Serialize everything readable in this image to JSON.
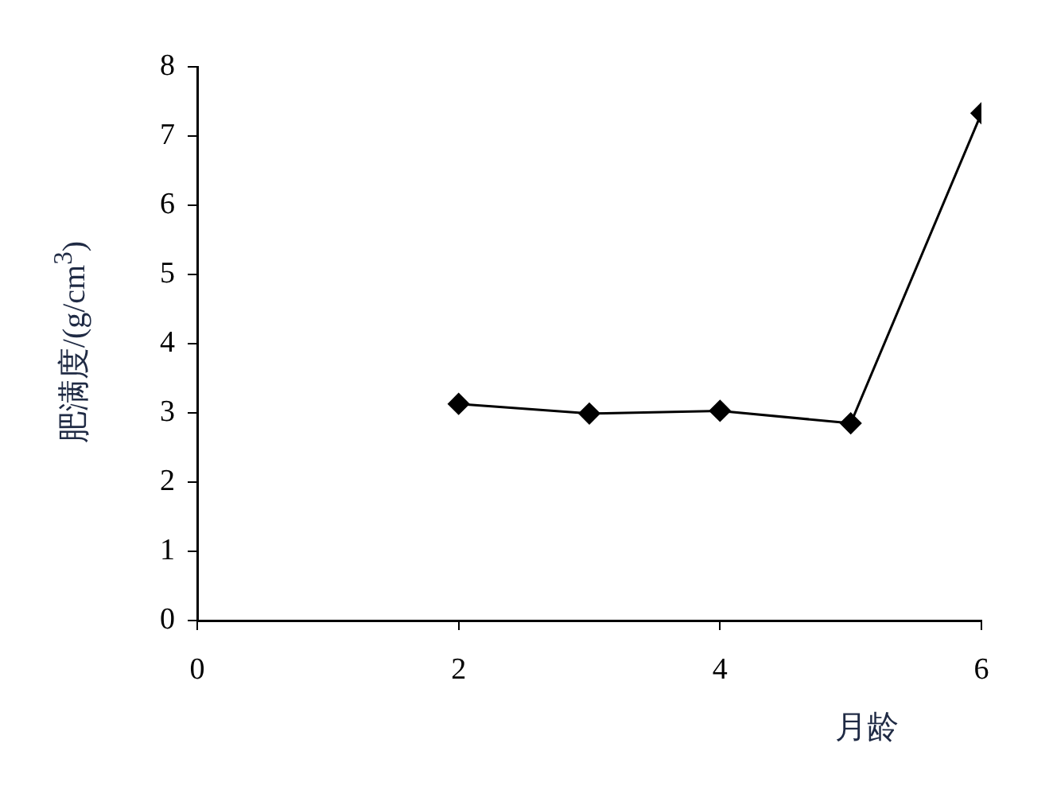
{
  "chart_data": {
    "type": "line",
    "xlabel": "月龄",
    "ylabel": "肥满度/(g/cm$^{3}$)",
    "x": [
      2,
      3,
      4,
      5,
      6
    ],
    "series": [
      {
        "color": "#000000",
        "values": [
          3.13,
          2.99,
          3.03,
          2.85,
          7.33
        ]
      }
    ],
    "xlim": [
      0,
      6
    ],
    "xticks": [
      0,
      2,
      4,
      6
    ],
    "ylim": [
      0,
      8
    ],
    "yticks": [
      0,
      1,
      2,
      3,
      4,
      5,
      6,
      7,
      8
    ],
    "grid": false,
    "legend": false,
    "marker": "diamond",
    "line_style": "solid"
  }
}
